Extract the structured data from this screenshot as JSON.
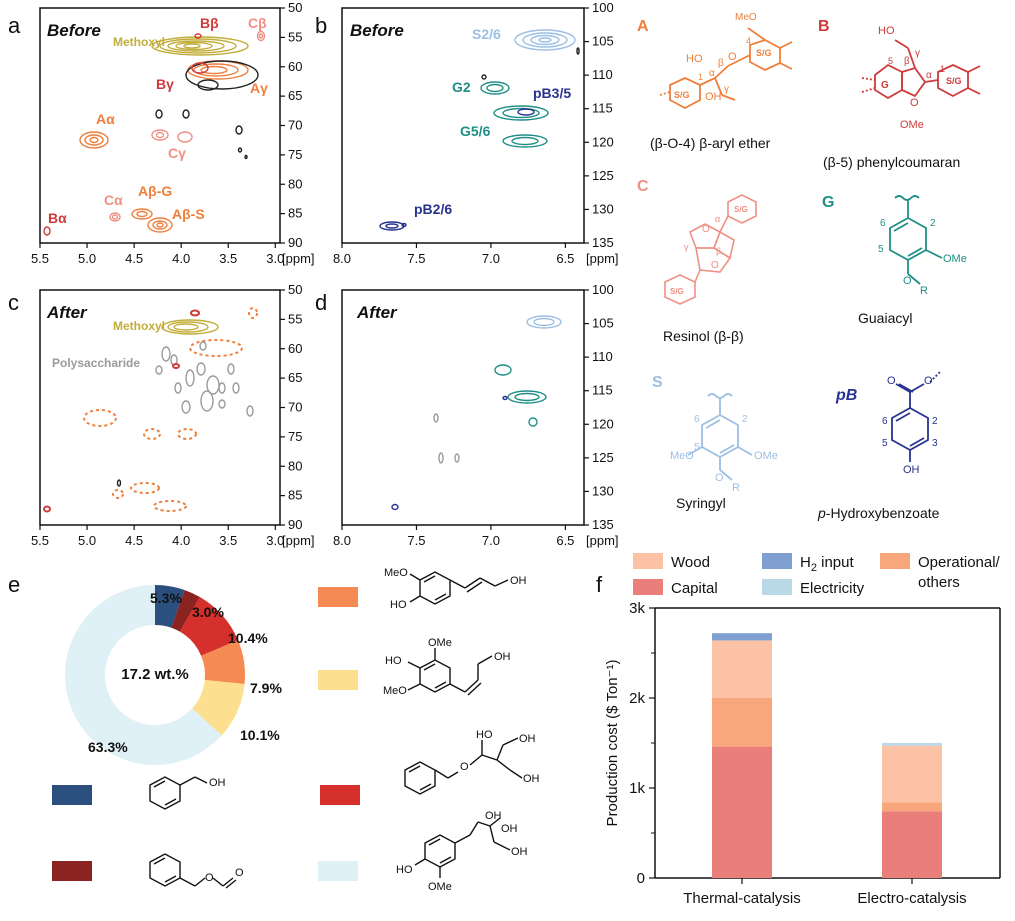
{
  "colors": {
    "methoxyl": "#c2ad3a",
    "A": "#ef7f3a",
    "B": "#cf3b3b",
    "C": "#ee9084",
    "G": "#1f8f86",
    "S": "#9cbfe3",
    "pB": "#27338f",
    "poly": "#9a9a9a",
    "black": "#222222"
  },
  "panel_a": {
    "letter": "a",
    "tag": "Before",
    "xticks": [
      "5.5",
      "5.0",
      "4.5",
      "4.0",
      "3.5",
      "3.0"
    ],
    "xunit": "[ppm]",
    "yticks": [
      "50",
      "55",
      "60",
      "65",
      "70",
      "75",
      "80",
      "85",
      "90"
    ],
    "labels": {
      "methoxyl": "Methoxyl",
      "bbeta": "Bβ",
      "cbeta": "Cβ",
      "bgamma": "Bγ",
      "agamma": "Aγ",
      "aalpha": "Aα",
      "cgamma": "Cγ",
      "calpha": "Cα",
      "abg": "Aβ-G",
      "abs": "Aβ-S",
      "balpha": "Bα"
    }
  },
  "panel_b": {
    "letter": "b",
    "tag": "Before",
    "xticks": [
      "8.0",
      "7.5",
      "7.0",
      "6.5"
    ],
    "xunit": "[ppm]",
    "yticks": [
      "100",
      "105",
      "110",
      "115",
      "120",
      "125",
      "130",
      "135"
    ],
    "labels": {
      "s26": "S2/6",
      "g2": "G2",
      "pb35": "pB3/5",
      "g56": "G5/6",
      "pb26": "pB2/6"
    }
  },
  "panel_c": {
    "letter": "c",
    "tag": "After",
    "xticks": [
      "5.5",
      "5.0",
      "4.5",
      "4.0",
      "3.5",
      "3.0"
    ],
    "xunit": "[ppm]",
    "yticks": [
      "50",
      "55",
      "60",
      "65",
      "70",
      "75",
      "80",
      "85",
      "90"
    ],
    "labels": {
      "methoxyl": "Methoxyl",
      "poly": "Polysaccharide"
    }
  },
  "panel_d": {
    "letter": "d",
    "tag": "After",
    "xticks": [
      "8.0",
      "7.5",
      "7.0",
      "6.5"
    ],
    "xunit": "[ppm]",
    "yticks": [
      "100",
      "105",
      "110",
      "115",
      "120",
      "125",
      "130",
      "135"
    ]
  },
  "structures": {
    "A": {
      "letter": "A",
      "caption": "(β-O-4) β-aryl ether"
    },
    "B": {
      "letter": "B",
      "caption": "(β-5) phenylcoumaran"
    },
    "C": {
      "letter": "C",
      "caption": "Resinol (β-β)"
    },
    "G": {
      "letter": "G",
      "caption": "Guaiacyl"
    },
    "S": {
      "letter": "S",
      "caption": "Syringyl"
    },
    "pB": {
      "letter": "pB",
      "caption_prefix": "p",
      "caption_rest": "-Hydroxybenzoate"
    },
    "atoms": {
      "meo": "MeO",
      "ome": "OMe",
      "ho": "HO",
      "oh": "OH",
      "o": "O",
      "r": "R",
      "sg": "S/G",
      "g": "G",
      "alpha": "α",
      "beta": "β",
      "gamma": "γ",
      "n1": "1",
      "n2": "2",
      "n3": "3",
      "n4": "4",
      "n5": "5",
      "n6": "6"
    }
  },
  "panel_e": {
    "letter": "e",
    "center_label": "17.2 wt.%",
    "mol_labels": {
      "oh": "OH",
      "ho": "HO",
      "meo": "MeO",
      "ome": "OMe",
      "o": "O"
    }
  },
  "panel_f": {
    "letter": "f",
    "h2_sub": "2"
  },
  "chart_data": [
    {
      "type": "pie",
      "title": "17.2 wt.%",
      "labels": [
        "benzyl alcohol",
        "benzyl formate",
        "benzyl glycerol ether",
        "coniferyl alcohol",
        "sinapyl alcohol (cis)",
        "guaiacylglycerol"
      ],
      "values": [
        5.3,
        3.0,
        10.4,
        7.9,
        10.1,
        63.3
      ],
      "value_labels": [
        "5.3%",
        "3.0%",
        "10.4%",
        "7.9%",
        "10.1%",
        "63.3%"
      ],
      "colors": [
        "#2b4f7e",
        "#8b2320",
        "#d5302b",
        "#f58a52",
        "#fde08f",
        "#dff0f7"
      ]
    },
    {
      "type": "bar",
      "stacked": true,
      "categories": [
        "Thermal-catalysis",
        "Electro-catalysis"
      ],
      "series": [
        {
          "name": "Capital",
          "values": [
            1460,
            740
          ],
          "color": "#e97e7b"
        },
        {
          "name": "Operational/ others",
          "values": [
            540,
            100
          ],
          "color": "#f8a77c"
        },
        {
          "name": "Wood",
          "values": [
            640,
            630
          ],
          "color": "#fbc2a6"
        },
        {
          "name": "Electricity",
          "values": [
            0,
            30
          ],
          "color": "#bad9e7"
        },
        {
          "name": "H2 input",
          "values": [
            80,
            0
          ],
          "color": "#7e9fcf"
        }
      ],
      "legend": [
        {
          "key": "wood",
          "text": "Wood",
          "color": "#fbc2a6"
        },
        {
          "key": "h2",
          "text": "H",
          "sub": "2",
          "after": " input",
          "color": "#7e9fcf"
        },
        {
          "key": "oper",
          "text": "Operational/",
          "text2": "others",
          "color": "#f8a77c"
        },
        {
          "key": "capital",
          "text": "Capital",
          "color": "#e97e7b"
        },
        {
          "key": "elec",
          "text": "Electricity",
          "color": "#bad9e7"
        }
      ],
      "ylabel": "Production cost ($ Ton⁻¹)",
      "ylim": [
        0,
        3000
      ],
      "yticks": [
        0,
        1000,
        2000,
        3000
      ],
      "ytick_labels": [
        "0",
        "1k",
        "2k",
        "3k"
      ]
    }
  ]
}
